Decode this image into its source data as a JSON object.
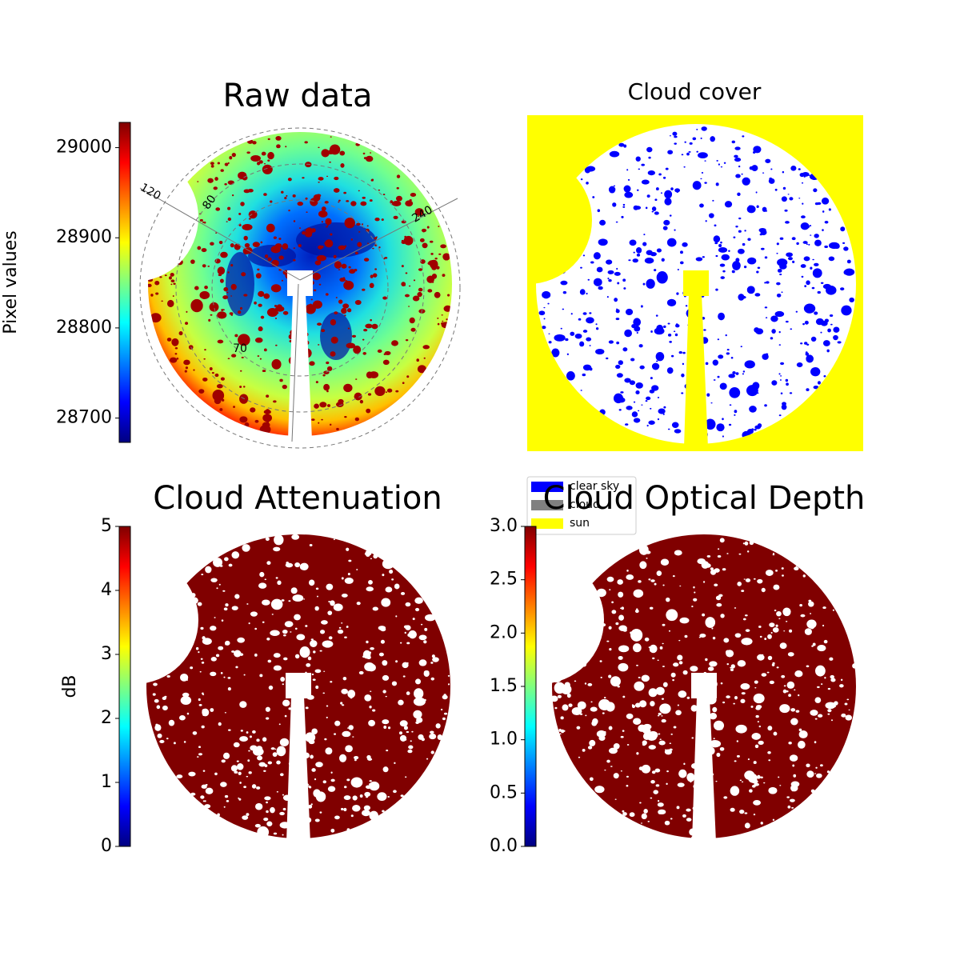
{
  "chart_data": [
    {
      "type": "image",
      "title": "Raw data",
      "colormap": "jet",
      "colorbar": {
        "label": "Pixel values",
        "lim": [
          28673,
          29028
        ],
        "ticks": [
          28700,
          28800,
          28900,
          29000
        ]
      },
      "annotations": [
        "120",
        "80",
        "240",
        "70"
      ]
    },
    {
      "type": "image",
      "title": "Cloud cover",
      "legend": [
        {
          "name": "clear sky",
          "color": "#0000ff"
        },
        {
          "name": "cloud",
          "color": "#808080"
        },
        {
          "name": "sun",
          "color": "#ffff00"
        }
      ]
    },
    {
      "type": "image",
      "title": "Cloud Attenuation",
      "colormap": "jet",
      "colorbar": {
        "label": "dB",
        "lim": [
          0,
          5
        ],
        "ticks": [
          0,
          1,
          2,
          3,
          4,
          5
        ]
      }
    },
    {
      "type": "image",
      "title": "Cloud Optical Depth",
      "colormap": "jet",
      "colorbar": {
        "lim": [
          0,
          3
        ],
        "ticks": [
          {
            "value": 0,
            "label": "0.0"
          },
          {
            "value": 0.5,
            "label": "0.5"
          },
          {
            "value": 1,
            "label": "1.0"
          },
          {
            "value": 1.5,
            "label": "1.5"
          },
          {
            "value": 2,
            "label": "2.0"
          },
          {
            "value": 2.5,
            "label": "2.5"
          },
          {
            "value": 3,
            "label": "3.0"
          }
        ]
      }
    }
  ]
}
